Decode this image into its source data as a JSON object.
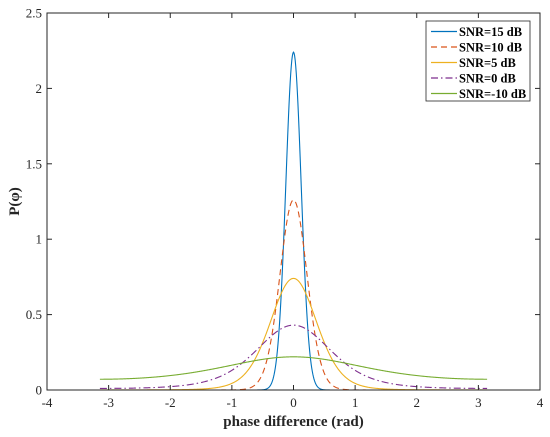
{
  "chart_data": {
    "type": "line",
    "title": "",
    "xlabel": "phase difference (rad)",
    "ylabel": "P(φ)",
    "xlim": [
      -4,
      4
    ],
    "ylim": [
      0,
      2.5
    ],
    "xticks": [
      -4,
      -3,
      -2,
      -1,
      0,
      1,
      2,
      3,
      4
    ],
    "yticks": [
      0,
      0.5,
      1,
      1.5,
      2,
      2.5
    ],
    "xtick_labels": [
      "-4",
      "-3",
      "-2",
      "-1",
      "0",
      "1",
      "2",
      "3",
      "4"
    ],
    "ytick_labels": [
      "0",
      "0.5",
      "1",
      "1.5",
      "2",
      "2.5"
    ],
    "x_range": [
      -3.1416,
      3.1416
    ],
    "grid": false,
    "legend_position": "top-right",
    "series": [
      {
        "name": "SNR=15 dB",
        "snr_db": 15,
        "peak": 2.24,
        "color": "#0072BD",
        "dash": "solid"
      },
      {
        "name": "SNR=10 dB",
        "snr_db": 10,
        "peak": 1.26,
        "color": "#D95319",
        "dash": "dashed"
      },
      {
        "name": "SNR=5 dB",
        "snr_db": 5,
        "peak": 0.74,
        "color": "#EDB120",
        "dash": "solid"
      },
      {
        "name": "SNR=0 dB",
        "snr_db": 0,
        "peak": 0.43,
        "color": "#7E2F8E",
        "dash": "dashdot"
      },
      {
        "name": "SNR=-10 dB",
        "snr_db": -10,
        "peak": 0.22,
        "color": "#77AC30",
        "dash": "solid"
      }
    ]
  }
}
